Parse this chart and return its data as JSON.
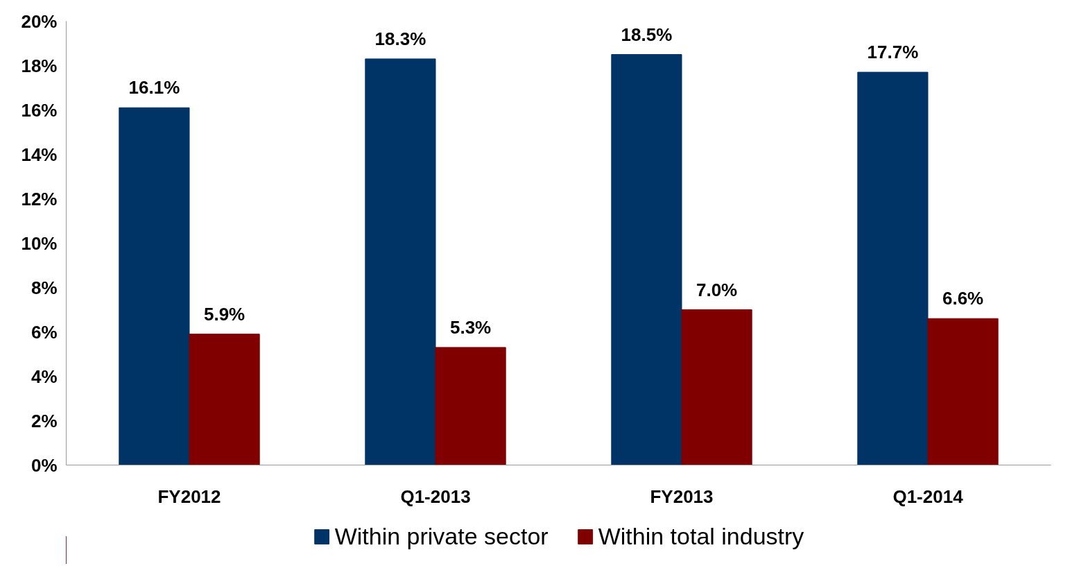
{
  "chart_data": {
    "type": "bar",
    "categories": [
      "FY2012",
      "Q1-2013",
      "FY2013",
      "Q1-2014"
    ],
    "series": [
      {
        "name": "Within private sector",
        "color": "#003366",
        "values": [
          16.1,
          18.3,
          18.5,
          17.7
        ],
        "value_labels": [
          "16.1%",
          "18.3%",
          "18.5%",
          "17.7%"
        ]
      },
      {
        "name": "Within total industry",
        "color": "#800000",
        "values": [
          5.9,
          5.3,
          7.0,
          6.6
        ],
        "value_labels": [
          "5.9%",
          "5.3%",
          "7.0%",
          "6.6%"
        ]
      }
    ],
    "ylim": [
      0,
      20
    ],
    "yticks": [
      {
        "value": 0,
        "label": "0%"
      },
      {
        "value": 2,
        "label": "2%"
      },
      {
        "value": 4,
        "label": "4%"
      },
      {
        "value": 6,
        "label": "6%"
      },
      {
        "value": 8,
        "label": "8%"
      },
      {
        "value": 10,
        "label": "10%"
      },
      {
        "value": 12,
        "label": "12%"
      },
      {
        "value": 14,
        "label": "14%"
      },
      {
        "value": 16,
        "label": "16%"
      },
      {
        "value": 18,
        "label": "18%"
      },
      {
        "value": 20,
        "label": "20%"
      }
    ],
    "grid": false,
    "legend": "bottom"
  }
}
